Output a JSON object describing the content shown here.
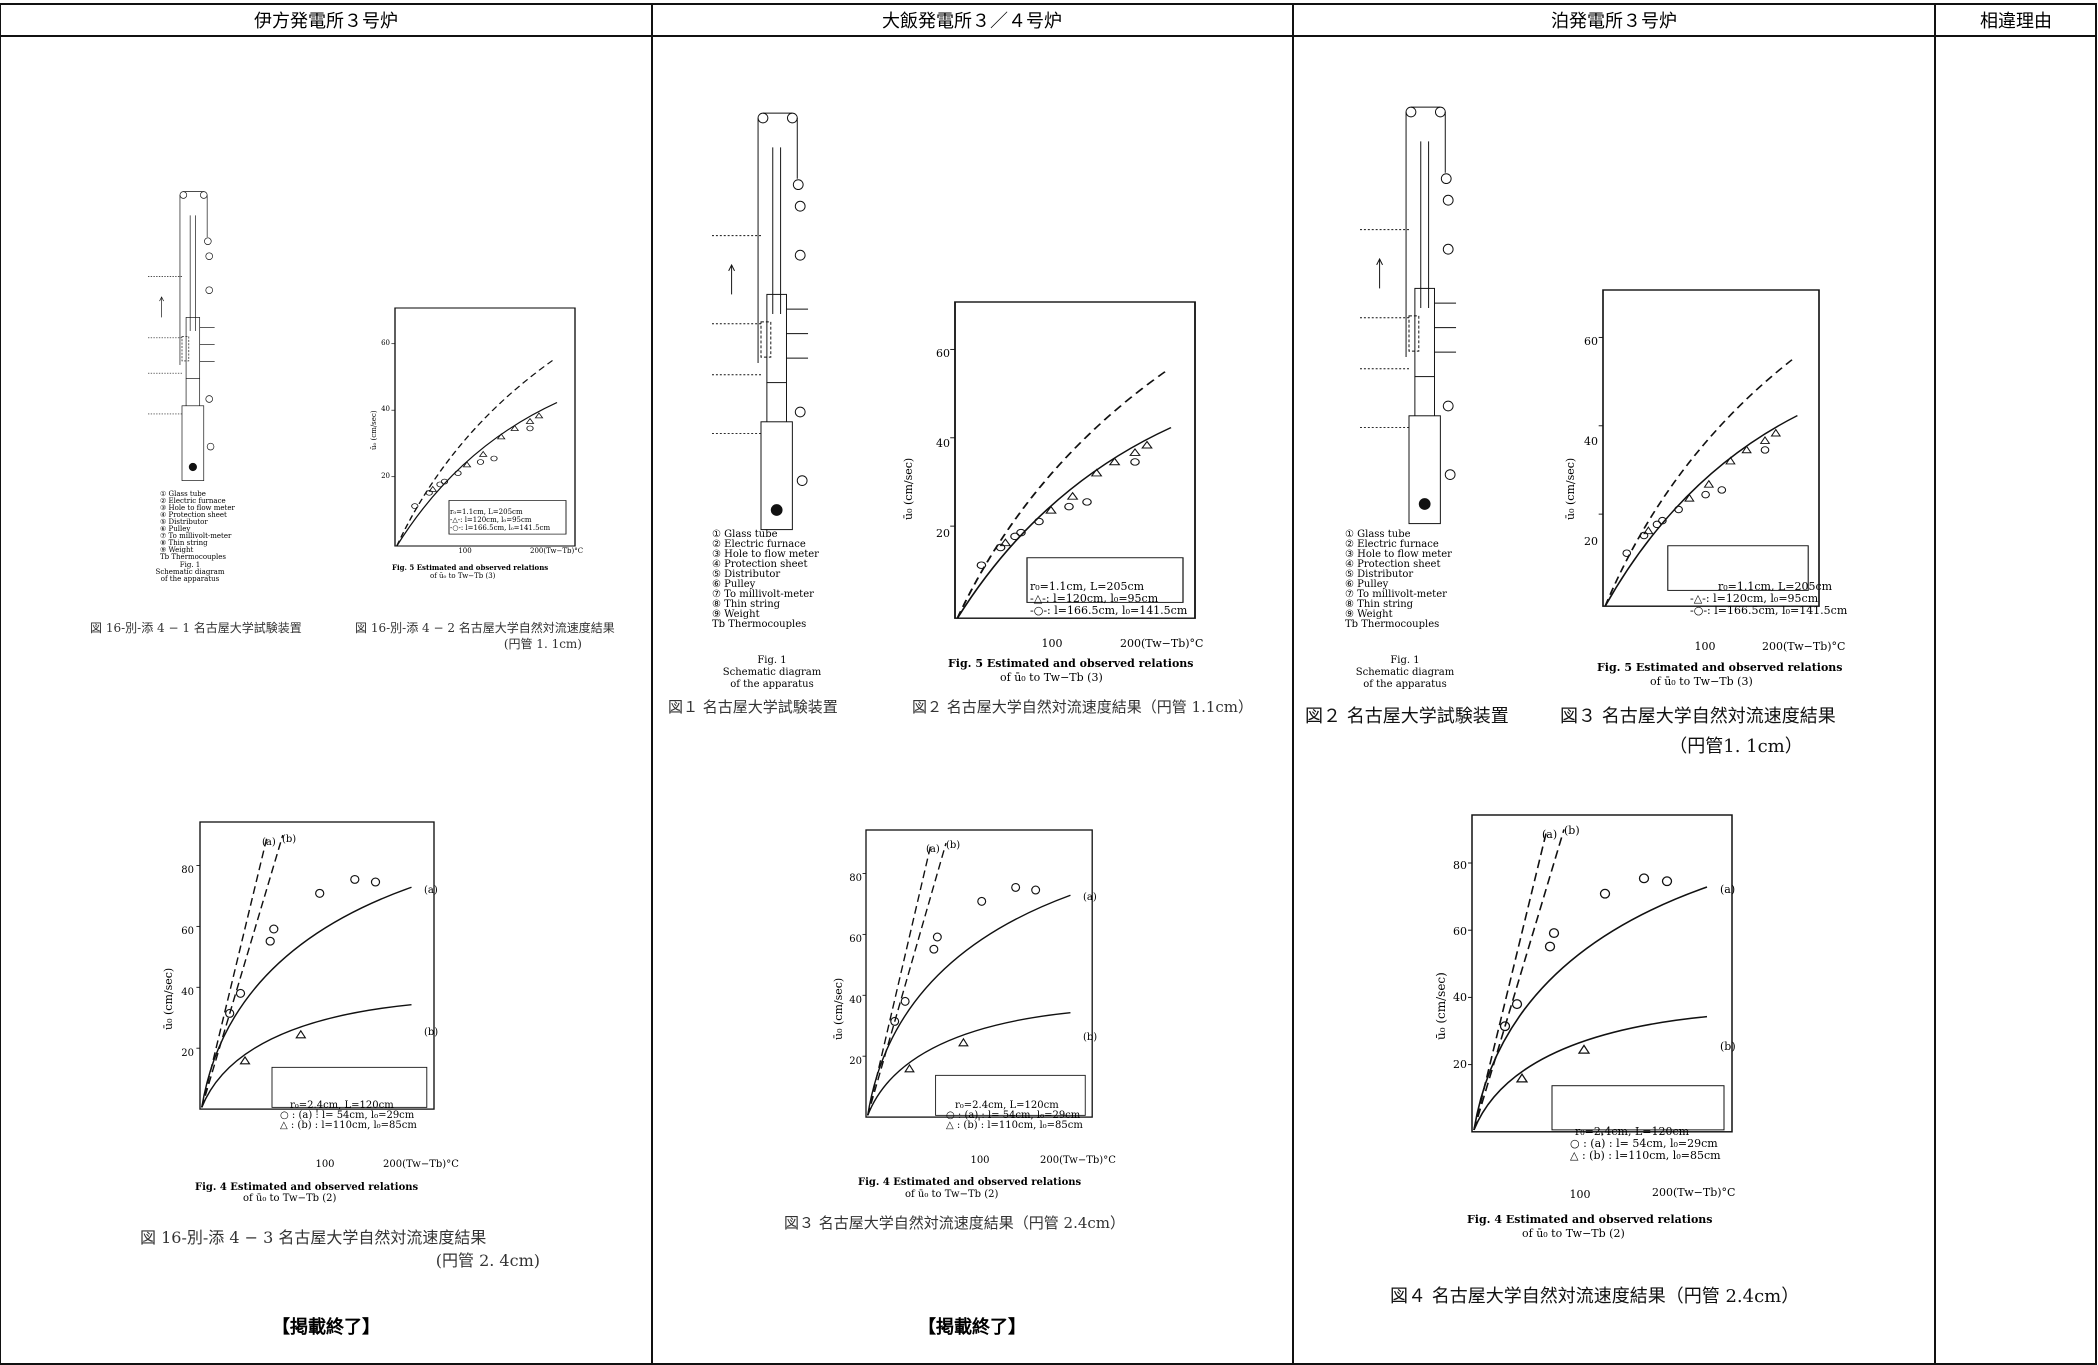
{
  "table": {
    "headers": [
      "伊方発電所３号炉",
      "大飯発電所３／４号炉",
      "泊発電所３号炉",
      "相違理由"
    ]
  },
  "figures": {
    "apparatus_legend": [
      "① Glass tube",
      "② Electric furnace",
      "③ Hole to flow meter",
      "④ Protection sheet",
      "⑤ Distributor",
      "⑥ Pulley",
      "⑦ To millivolt-meter",
      "⑧ Thin string",
      "⑨ Weight",
      "Tb Thermocouples"
    ],
    "apparatus_caption": [
      "Fig. 1",
      "Schematic diagram",
      "of the apparatus"
    ],
    "fig5_caption": [
      "Fig. 5   Estimated and observed relations",
      "of ū₀ to Tw−Tb (3)"
    ],
    "fig4_caption": [
      "Fig. 4   Estimated and observed relations",
      "of ū₀ to Tw−Tb (2)"
    ],
    "fig5_legend": [
      "r₀=1.1cm, L=205cm",
      "-△-: l=120cm, l₀=95cm",
      "-○-: l=166.5cm, l₀=141.5cm"
    ],
    "fig4_legend": [
      "r₀=2.4cm,   L=120cm",
      "○ : (a) : l=  54cm, l₀=29cm",
      "△ : (b) : l=110cm, l₀=85cm"
    ],
    "ylabel": "ū₀  (cm/sec)",
    "xlabel": "200(Tw−Tb)°C",
    "x_tick": "100",
    "fig5_yticks": [
      "60",
      "40",
      "20"
    ],
    "fig4_yticks": [
      "80",
      "60",
      "40",
      "20"
    ],
    "curve_a": "(a)",
    "curve_b": "(b)"
  },
  "col1": {
    "cap1": "図 16-別-添 4 − 1  名古屋大学試験装置",
    "cap2": "図 16-別-添 4 − 2  名古屋大学自然対流速度結果",
    "cap2b": "(円管 1. 1cm)",
    "cap3": "図 16-別-添 4 − 3  名古屋大学自然対流速度結果",
    "cap3b": "(円管 2. 4cm)",
    "end": "【掲載終了】"
  },
  "col2": {
    "cap1": "図１ 名古屋大学試験装置",
    "cap2": "図２   名古屋大学自然対流速度結果（円管 1.1cm）",
    "cap3": "図３   名古屋大学自然対流速度結果（円管 2.4cm）",
    "end": "【掲載終了】"
  },
  "col3": {
    "cap1": "図２   名古屋大学試験装置",
    "cap2": "図３   名古屋大学自然対流速度結果",
    "cap2b": "（円管1. 1cm）",
    "cap3": "図４   名古屋大学自然対流速度結果（円管 2.4cm）"
  }
}
